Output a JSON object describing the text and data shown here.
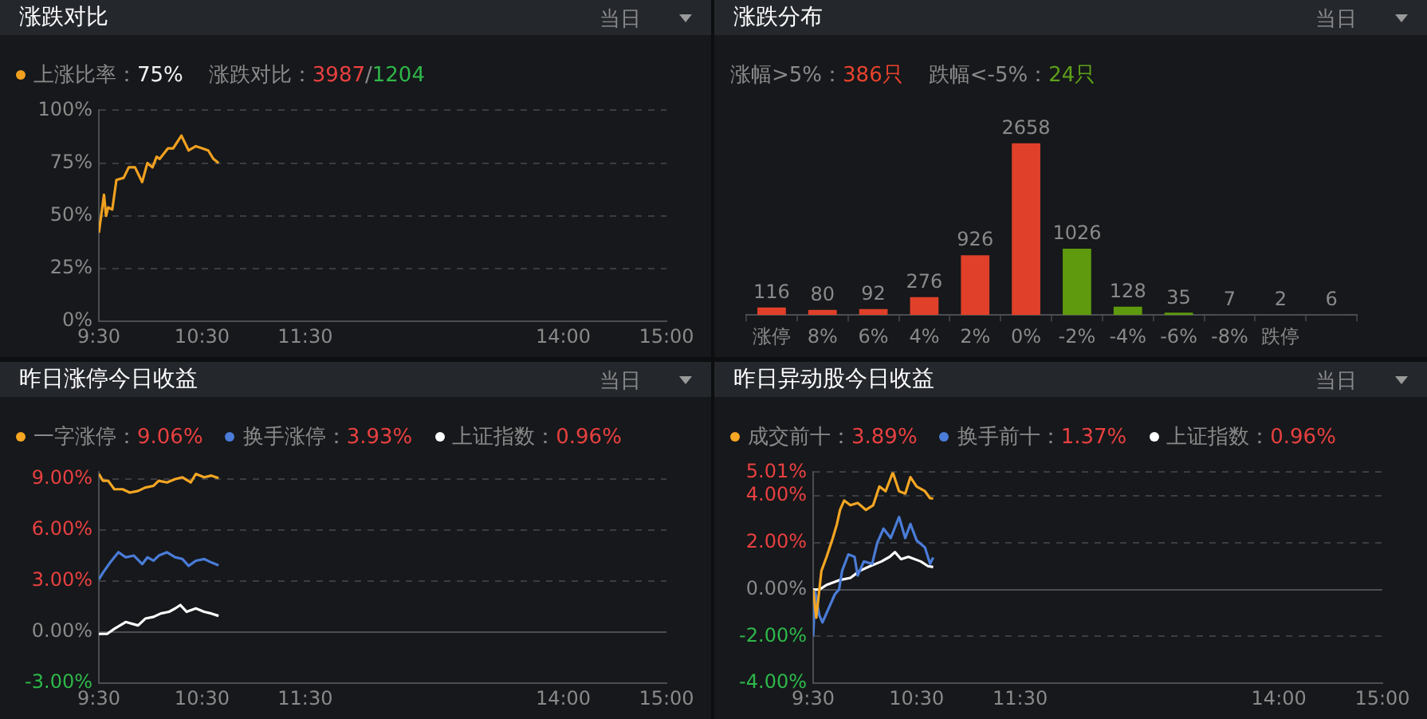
{
  "chart_data": [
    {
      "type": "line",
      "title": "涨跌对比",
      "annotations": [
        "当日",
        "75%",
        "涨跌对比：",
        "3987",
        "/",
        "1204"
      ],
      "legend": "top left",
      "grid": "y",
      "xlim": [
        9.5,
        15
      ],
      "xticks": [
        {
          "value": 9.5,
          "label": "9:30"
        },
        {
          "value": 10.5,
          "label": "10:30"
        },
        {
          "value": 11.5,
          "label": "11:30"
        },
        {
          "value": 14,
          "label": "14:00"
        },
        {
          "value": 15,
          "label": "15:00"
        }
      ],
      "ylim": [
        0,
        100
      ],
      "yticks": [
        {
          "value": 0,
          "label": "0%"
        },
        {
          "value": 25,
          "label": "25%"
        },
        {
          "value": 50,
          "label": "50%"
        },
        {
          "value": 75,
          "label": "75%"
        },
        {
          "value": 100,
          "label": "100%"
        }
      ],
      "series": [
        {
          "name": "上涨比率：",
          "color": "#f0a020",
          "x": [
            9.5,
            9.55,
            9.57,
            9.59,
            9.63,
            9.67,
            9.74,
            9.79,
            9.85,
            9.92,
            9.97,
            10.02,
            10.06,
            10.09,
            10.17,
            10.22,
            10.3,
            10.37,
            10.44,
            10.5,
            10.56,
            10.61,
            10.66
          ],
          "values": [
            42,
            60,
            50,
            54,
            53,
            67,
            68,
            73,
            73,
            66,
            75,
            73,
            78,
            77,
            82,
            82,
            88,
            81,
            83,
            82,
            81,
            77,
            75
          ]
        }
      ]
    },
    {
      "type": "bar",
      "title": "涨跌分布",
      "annotations": [
        "当日",
        "涨幅>5%：",
        "386只",
        "跌幅<-5%：",
        "24只"
      ],
      "data_labels": true,
      "categories": [
        "涨停",
        "8%",
        "6%",
        "4%",
        "2%",
        "0%",
        "-2%",
        "-4%",
        "-6%",
        "-8%",
        "跌停",
        null
      ],
      "values": [
        116,
        80,
        92,
        276,
        926,
        2658,
        1026,
        128,
        35,
        7,
        2,
        6
      ],
      "colors": [
        "#e0402a",
        "#e0402a",
        "#e0402a",
        "#e0402a",
        "#e0402a",
        "#e0402a",
        "#5f9a0e",
        "#5f9a0e",
        "#5f9a0e",
        "#3b4a2a",
        "#3b4a2a",
        "#3b4a2a"
      ]
    },
    {
      "type": "line",
      "title": "昨日涨停今日收益",
      "annotations": [
        "当日",
        "9.06%",
        "3.93%",
        "0.96%"
      ],
      "legend": "top left",
      "grid": "y",
      "xlim": [
        9.5,
        15
      ],
      "xticks": [
        {
          "value": 9.5,
          "label": "9:30"
        },
        {
          "value": 10.5,
          "label": "10:30"
        },
        {
          "value": 11.5,
          "label": "11:30"
        },
        {
          "value": 14,
          "label": "14:00"
        },
        {
          "value": 15,
          "label": "15:00"
        }
      ],
      "ylim": [
        -3,
        9.4
      ],
      "yticks": [
        {
          "value": -3,
          "label": "-3.00%"
        },
        {
          "value": 0,
          "label": "0.00%"
        },
        {
          "value": 3,
          "label": "3.00%"
        },
        {
          "value": 6,
          "label": "6.00%"
        },
        {
          "value": 9,
          "label": "9.00%"
        }
      ],
      "series": [
        {
          "name": "一字涨停：",
          "color": "#f5a623",
          "x": [
            9.5,
            9.54,
            9.59,
            9.65,
            9.73,
            9.8,
            9.88,
            9.95,
            10.03,
            10.08,
            10.16,
            10.24,
            10.31,
            10.39,
            10.44,
            10.52,
            10.59,
            10.66
          ],
          "values": [
            9.3,
            8.9,
            8.9,
            8.4,
            8.4,
            8.2,
            8.3,
            8.5,
            8.6,
            8.9,
            8.8,
            9.0,
            9.1,
            8.8,
            9.3,
            9.1,
            9.2,
            9.06
          ]
        },
        {
          "name": "换手涨停：",
          "color": "#4a7cd8",
          "x": [
            9.5,
            9.54,
            9.61,
            9.69,
            9.76,
            9.84,
            9.92,
            9.97,
            10.03,
            10.08,
            10.16,
            10.24,
            10.31,
            10.37,
            10.44,
            10.52,
            10.59,
            10.66
          ],
          "values": [
            3.1,
            3.5,
            4.1,
            4.7,
            4.4,
            4.5,
            4.0,
            4.4,
            4.2,
            4.5,
            4.7,
            4.4,
            4.3,
            3.9,
            4.2,
            4.3,
            4.1,
            3.93
          ]
        },
        {
          "name": "上证指数：",
          "color": "#ffffff",
          "x": [
            9.5,
            9.58,
            9.65,
            9.76,
            9.88,
            9.95,
            10.03,
            10.1,
            10.18,
            10.24,
            10.29,
            10.35,
            10.44,
            10.52,
            10.59,
            10.66
          ],
          "values": [
            -0.1,
            -0.1,
            0.2,
            0.6,
            0.4,
            0.8,
            0.9,
            1.1,
            1.2,
            1.4,
            1.6,
            1.2,
            1.4,
            1.2,
            1.1,
            0.96
          ]
        }
      ]
    },
    {
      "type": "line",
      "title": "昨日异动股今日收益",
      "annotations": [
        "当日",
        "3.89%",
        "1.37%",
        "0.96%"
      ],
      "legend": "top left",
      "grid": "y",
      "xlim": [
        9.5,
        15
      ],
      "xticks": [
        {
          "value": 9.5,
          "label": "9:30"
        },
        {
          "value": 10.5,
          "label": "10:30"
        },
        {
          "value": 11.5,
          "label": "11:30"
        },
        {
          "value": 14,
          "label": "14:00"
        },
        {
          "value": 15,
          "label": "15:00"
        }
      ],
      "ylim": [
        -4,
        5.01
      ],
      "yticks": [
        {
          "value": -4,
          "label": "-4.00%"
        },
        {
          "value": -2,
          "label": "-2.00%"
        },
        {
          "value": 0,
          "label": "0.00%"
        },
        {
          "value": 2,
          "label": "2.00%"
        },
        {
          "value": 4,
          "label": "4.00%"
        },
        {
          "value": 5.01,
          "label": "5.01%"
        }
      ],
      "series": [
        {
          "name": "成交前十：",
          "color": "#f5a623",
          "x": [
            9.5,
            9.53,
            9.58,
            9.63,
            9.69,
            9.73,
            9.76,
            9.8,
            9.86,
            9.93,
            10.01,
            10.08,
            10.14,
            10.2,
            10.27,
            10.33,
            10.39,
            10.44,
            10.5,
            10.58,
            10.63,
            10.66
          ],
          "values": [
            0,
            -1.2,
            0.8,
            1.4,
            2.2,
            2.8,
            3.4,
            3.8,
            3.6,
            3.7,
            3.4,
            3.6,
            4.4,
            4.2,
            5.0,
            4.2,
            4.1,
            4.8,
            4.4,
            4.2,
            3.9,
            3.89
          ]
        },
        {
          "name": "换手前十：",
          "color": "#4a7cd8",
          "x": [
            9.5,
            9.52,
            9.56,
            9.59,
            9.65,
            9.71,
            9.75,
            9.78,
            9.84,
            9.9,
            9.93,
            9.99,
            10.07,
            10.12,
            10.18,
            10.25,
            10.33,
            10.39,
            10.44,
            10.5,
            10.58,
            10.63,
            10.66
          ],
          "values": [
            -2.0,
            -0.1,
            -1.1,
            -1.4,
            -0.8,
            -0.2,
            0,
            0.8,
            1.5,
            1.4,
            0.6,
            1.2,
            1.1,
            2.0,
            2.6,
            2.2,
            3.1,
            2.2,
            2.8,
            2.1,
            1.8,
            1.1,
            1.37
          ]
        },
        {
          "name": "上证指数：",
          "color": "#ffffff",
          "x": [
            9.5,
            9.56,
            9.63,
            9.75,
            9.86,
            9.95,
            10.05,
            10.16,
            10.24,
            10.29,
            10.35,
            10.42,
            10.54,
            10.61,
            10.66
          ],
          "values": [
            0,
            0,
            0.2,
            0.4,
            0.5,
            0.8,
            1.0,
            1.2,
            1.4,
            1.6,
            1.3,
            1.4,
            1.2,
            1.0,
            0.96
          ]
        }
      ]
    }
  ]
}
